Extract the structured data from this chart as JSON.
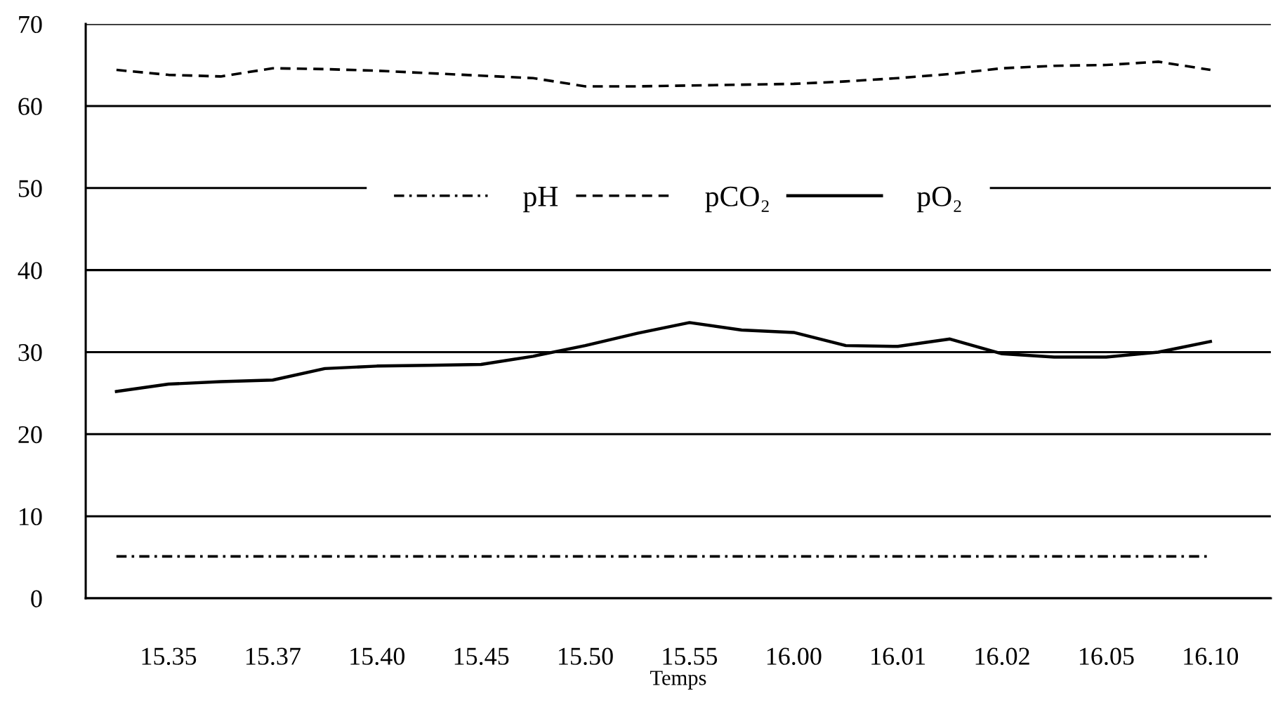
{
  "chart_data": {
    "type": "line",
    "xlabel": "Temps",
    "categories": [
      null,
      "15.35",
      null,
      "15.37",
      null,
      "15.40",
      null,
      "15.45",
      null,
      "15.50",
      null,
      "15.55",
      null,
      "16.00",
      null,
      "16.01",
      null,
      "16.02",
      null,
      "16.05",
      null,
      "16.10"
    ],
    "series": [
      {
        "name": "pH",
        "color": "#000000",
        "line_style": "dashdot",
        "values": [
          5.1,
          5.1,
          5.1,
          5.1,
          5.1,
          5.1,
          5.1,
          5.1,
          5.1,
          5.1,
          5.1,
          5.1,
          5.1,
          5.1,
          5.1,
          5.1,
          5.1,
          5.1,
          5.1,
          5.1,
          5.1,
          5.1
        ]
      },
      {
        "name": "pCO₂",
        "color": "#000000",
        "line_style": "dashed",
        "values": [
          64.4,
          63.8,
          63.6,
          64.6,
          64.5,
          64.3,
          64.0,
          63.7,
          63.4,
          62.4,
          62.4,
          62.5,
          62.6,
          62.7,
          63.0,
          63.4,
          63.9,
          64.6,
          64.9,
          65.0,
          65.4,
          64.4
        ]
      },
      {
        "name": "pO₂",
        "color": "#000000",
        "line_style": "solid",
        "values": [
          25.2,
          26.1,
          26.4,
          26.6,
          28.0,
          28.3,
          28.4,
          28.5,
          29.5,
          30.8,
          32.3,
          33.6,
          32.7,
          32.4,
          30.8,
          30.7,
          31.6,
          29.8,
          29.4,
          29.4,
          30.0,
          31.3
        ]
      }
    ],
    "ylim": [
      0,
      70
    ],
    "yticks": [
      0,
      10,
      20,
      30,
      40,
      50,
      60,
      70
    ],
    "grid": "y",
    "legend": "top",
    "marker": "none"
  }
}
